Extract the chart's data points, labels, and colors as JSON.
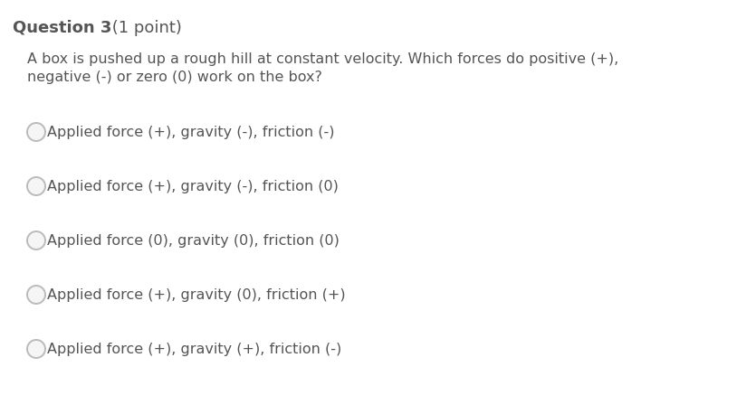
{
  "background_color": "#ffffff",
  "question_label": "Question 3",
  "question_suffix": " (1 point)",
  "question_text_line1": "A box is pushed up a rough hill at constant velocity. Which forces do positive (+),",
  "question_text_line2": "negative (-) or zero (0) work on the box?",
  "options": [
    "Applied force (+), gravity (-), friction (-)",
    "Applied force (+), gravity (-), friction (0)",
    "Applied force (0), gravity (0), friction (0)",
    "Applied force (+), gravity (0), friction (+)",
    "Applied force (+), gravity (+), friction (-)"
  ],
  "title_fontsize": 13.0,
  "body_fontsize": 11.5,
  "option_fontsize": 11.5,
  "text_color": "#555555",
  "circle_edgecolor": "#bbbbbb",
  "circle_facecolor": "#f5f5f5",
  "fig_width": 8.35,
  "fig_height": 4.58,
  "dpi": 100
}
